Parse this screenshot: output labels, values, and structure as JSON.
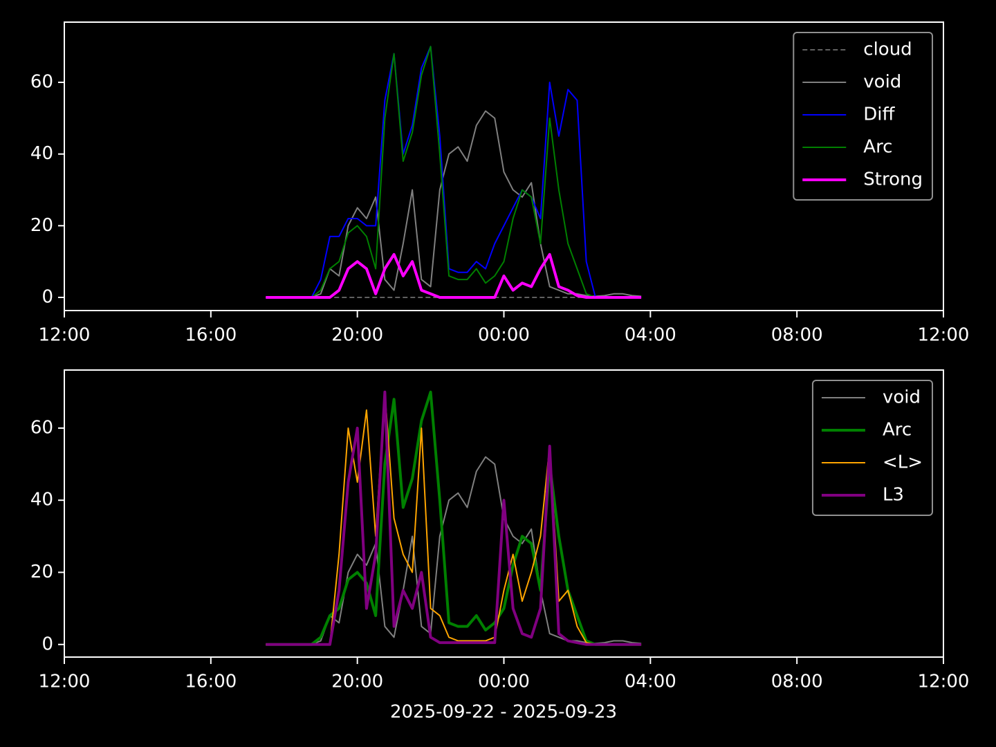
{
  "chart_data": [
    {
      "type": "line",
      "legend": "upper right",
      "x": [
        "2025-09-22T17:30",
        "2025-09-22T17:45",
        "2025-09-22T18:00",
        "2025-09-22T18:15",
        "2025-09-22T18:30",
        "2025-09-22T18:45",
        "2025-09-22T19:00",
        "2025-09-22T19:15",
        "2025-09-22T19:30",
        "2025-09-22T19:45",
        "2025-09-22T20:00",
        "2025-09-22T20:15",
        "2025-09-22T20:30",
        "2025-09-22T20:45",
        "2025-09-22T21:00",
        "2025-09-22T21:15",
        "2025-09-22T21:30",
        "2025-09-22T21:45",
        "2025-09-22T22:00",
        "2025-09-22T22:15",
        "2025-09-22T22:30",
        "2025-09-22T22:45",
        "2025-09-22T23:00",
        "2025-09-22T23:15",
        "2025-09-22T23:30",
        "2025-09-22T23:45",
        "2025-09-23T00:00",
        "2025-09-23T00:15",
        "2025-09-23T00:30",
        "2025-09-23T00:45",
        "2025-09-23T01:00",
        "2025-09-23T01:15",
        "2025-09-23T01:30",
        "2025-09-23T01:45",
        "2025-09-23T02:00",
        "2025-09-23T02:15",
        "2025-09-23T02:30",
        "2025-09-23T02:45",
        "2025-09-23T03:00",
        "2025-09-23T03:15",
        "2025-09-23T03:30",
        "2025-09-23T03:45"
      ],
      "xlim": [
        "2025-09-22T12:00",
        "2025-09-23T12:00"
      ],
      "xticks": [
        {
          "value": "2025-09-22T12:00",
          "label": "12:00"
        },
        {
          "value": "2025-09-22T16:00",
          "label": "16:00"
        },
        {
          "value": "2025-09-22T20:00",
          "label": "20:00"
        },
        {
          "value": "2025-09-23T00:00",
          "label": "00:00"
        },
        {
          "value": "2025-09-23T04:00",
          "label": "04:00"
        },
        {
          "value": "2025-09-23T08:00",
          "label": "08:00"
        },
        {
          "value": "2025-09-23T12:00",
          "label": "12:00"
        }
      ],
      "ylim": [
        -3.67,
        76.8
      ],
      "yticks": [
        0,
        20,
        40,
        60
      ],
      "series": [
        {
          "name": "cloud",
          "color": "#808080",
          "linestyle": "dashed",
          "linewidth": 1.5,
          "values": [
            0,
            0,
            0,
            0,
            0,
            0,
            0,
            0,
            0,
            0,
            0,
            0,
            0,
            0,
            0,
            0,
            0,
            0,
            0,
            0,
            0,
            0,
            0,
            0,
            0,
            0,
            0,
            0,
            0,
            0,
            0,
            0,
            0,
            0,
            0,
            0,
            0,
            0,
            0,
            0,
            0,
            0
          ]
        },
        {
          "name": "void",
          "color": "#808080",
          "linestyle": "solid",
          "linewidth": 2,
          "values": [
            0,
            0,
            0,
            0,
            0,
            0,
            1,
            8,
            6,
            20,
            25,
            22,
            28,
            5,
            2,
            15,
            30,
            5,
            3,
            30,
            40,
            42,
            38,
            48,
            52,
            50,
            35,
            30,
            28,
            32,
            15,
            3,
            2,
            1,
            1,
            0.5,
            0.3,
            0.5,
            1,
            1,
            0.5,
            0.3
          ]
        },
        {
          "name": "Diff",
          "color": "#0000ff",
          "linestyle": "solid",
          "linewidth": 2,
          "values": [
            0,
            0,
            0,
            0,
            0,
            0,
            5,
            17,
            17,
            22,
            22,
            20,
            20,
            55,
            68,
            40,
            48,
            64,
            70,
            45,
            8,
            7,
            7,
            10,
            8,
            15,
            20,
            25,
            30,
            28,
            22,
            60,
            45,
            58,
            55,
            10,
            0,
            0,
            0,
            0,
            0,
            0
          ]
        },
        {
          "name": "Arc",
          "color": "#008000",
          "linestyle": "solid",
          "linewidth": 2,
          "values": [
            0,
            0,
            0,
            0,
            0,
            0,
            2,
            8,
            10,
            18,
            20,
            17,
            8,
            50,
            68,
            38,
            46,
            62,
            70,
            40,
            6,
            5,
            5,
            8,
            4,
            6,
            10,
            22,
            30,
            28,
            15,
            50,
            30,
            15,
            8,
            1,
            0,
            0,
            0,
            0,
            0,
            0
          ]
        },
        {
          "name": "Strong",
          "color": "#ff00ff",
          "linestyle": "solid",
          "linewidth": 4,
          "values": [
            0,
            0,
            0,
            0,
            0,
            0,
            0,
            0,
            2,
            8,
            10,
            8,
            1,
            8,
            12,
            6,
            10,
            2,
            1,
            0,
            0,
            0,
            0,
            0,
            0,
            0,
            6,
            2,
            4,
            3,
            8,
            12,
            3,
            2,
            0.5,
            0,
            0,
            0,
            0,
            0,
            0,
            0
          ]
        }
      ]
    },
    {
      "type": "line",
      "legend": "upper right",
      "xlabel": "2025-09-22 - 2025-09-23",
      "x": [
        "2025-09-22T17:30",
        "2025-09-22T17:45",
        "2025-09-22T18:00",
        "2025-09-22T18:15",
        "2025-09-22T18:30",
        "2025-09-22T18:45",
        "2025-09-22T19:00",
        "2025-09-22T19:15",
        "2025-09-22T19:30",
        "2025-09-22T19:45",
        "2025-09-22T20:00",
        "2025-09-22T20:15",
        "2025-09-22T20:30",
        "2025-09-22T20:45",
        "2025-09-22T21:00",
        "2025-09-22T21:15",
        "2025-09-22T21:30",
        "2025-09-22T21:45",
        "2025-09-22T22:00",
        "2025-09-22T22:15",
        "2025-09-22T22:30",
        "2025-09-22T22:45",
        "2025-09-22T23:00",
        "2025-09-22T23:15",
        "2025-09-22T23:30",
        "2025-09-22T23:45",
        "2025-09-23T00:00",
        "2025-09-23T00:15",
        "2025-09-23T00:30",
        "2025-09-23T00:45",
        "2025-09-23T01:00",
        "2025-09-23T01:15",
        "2025-09-23T01:30",
        "2025-09-23T01:45",
        "2025-09-23T02:00",
        "2025-09-23T02:15",
        "2025-09-23T02:30",
        "2025-09-23T02:45",
        "2025-09-23T03:00",
        "2025-09-23T03:15",
        "2025-09-23T03:30",
        "2025-09-23T03:45"
      ],
      "xlim": [
        "2025-09-22T12:00",
        "2025-09-23T12:00"
      ],
      "xticks": [
        {
          "value": "2025-09-22T12:00",
          "label": "12:00"
        },
        {
          "value": "2025-09-22T16:00",
          "label": "16:00"
        },
        {
          "value": "2025-09-22T20:00",
          "label": "20:00"
        },
        {
          "value": "2025-09-23T00:00",
          "label": "00:00"
        },
        {
          "value": "2025-09-23T04:00",
          "label": "04:00"
        },
        {
          "value": "2025-09-23T08:00",
          "label": "08:00"
        },
        {
          "value": "2025-09-23T12:00",
          "label": "12:00"
        }
      ],
      "ylim": [
        -3.5,
        76.1
      ],
      "yticks": [
        0,
        20,
        40,
        60
      ],
      "series": [
        {
          "name": "void",
          "color": "#808080",
          "linestyle": "solid",
          "linewidth": 2,
          "values": [
            0,
            0,
            0,
            0,
            0,
            0,
            1,
            8,
            6,
            20,
            25,
            22,
            28,
            5,
            2,
            15,
            30,
            5,
            3,
            30,
            40,
            42,
            38,
            48,
            52,
            50,
            35,
            30,
            28,
            32,
            15,
            3,
            2,
            1,
            1,
            0.5,
            0.3,
            0.5,
            1,
            1,
            0.5,
            0.3
          ]
        },
        {
          "name": "Arc",
          "color": "#008000",
          "linestyle": "solid",
          "linewidth": 4,
          "values": [
            0,
            0,
            0,
            0,
            0,
            0,
            2,
            8,
            10,
            18,
            20,
            17,
            8,
            50,
            68,
            38,
            46,
            62,
            70,
            40,
            6,
            5,
            5,
            8,
            4,
            6,
            10,
            22,
            30,
            28,
            15,
            50,
            30,
            15,
            8,
            1,
            0,
            0,
            0,
            0,
            0,
            0
          ]
        },
        {
          "name": "<L>",
          "color": "#ffa500",
          "linestyle": "solid",
          "linewidth": 2,
          "values": [
            0,
            0,
            0,
            0,
            0,
            0,
            0,
            0,
            25,
            60,
            45,
            65,
            30,
            70,
            35,
            25,
            20,
            60,
            10,
            8,
            2,
            1,
            1,
            1,
            1,
            2,
            15,
            25,
            12,
            20,
            30,
            55,
            12,
            15,
            5,
            0.5,
            0,
            0,
            0,
            0,
            0,
            0
          ]
        },
        {
          "name": "L3",
          "color": "#800080",
          "linestyle": "solid",
          "linewidth": 4,
          "values": [
            0,
            0,
            0,
            0,
            0,
            0,
            0,
            0,
            15,
            45,
            60,
            10,
            25,
            70,
            5,
            15,
            10,
            20,
            2,
            0.5,
            0.5,
            0.5,
            0.5,
            0.5,
            0.5,
            0.5,
            40,
            10,
            3,
            2,
            10,
            55,
            3,
            1,
            0.5,
            0,
            0,
            0,
            0,
            0,
            0,
            0
          ]
        }
      ]
    }
  ]
}
